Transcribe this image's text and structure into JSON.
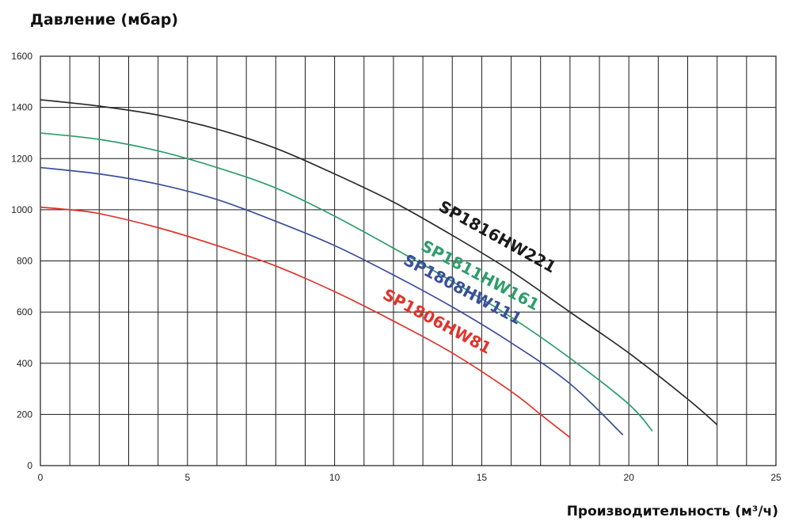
{
  "chart_data": {
    "type": "line",
    "ylabel": "Давление (мбар)",
    "xlabel": "Производительность (м³/ч)",
    "xlim": [
      0,
      25
    ],
    "ylim": [
      0,
      1600
    ],
    "x_ticks": [
      0,
      5,
      10,
      15,
      20,
      25
    ],
    "y_ticks": [
      0,
      200,
      400,
      600,
      800,
      1000,
      1200,
      1400,
      1600
    ],
    "x_gridlines_every": 1,
    "y_gridlines_every": 200,
    "grid": true,
    "series": [
      {
        "name": "SP1816HW221",
        "color": "#2b2b2b",
        "x": [
          0,
          2,
          4,
          6,
          8,
          10,
          12,
          14,
          16,
          18,
          20,
          22,
          23
        ],
        "y": [
          1430,
          1405,
          1370,
          1315,
          1240,
          1140,
          1030,
          900,
          760,
          600,
          440,
          260,
          160
        ]
      },
      {
        "name": "SP1811HW161",
        "color": "#2e9d6b",
        "x": [
          0,
          2,
          4,
          6,
          8,
          10,
          12,
          14,
          16,
          18,
          20,
          20.8
        ],
        "y": [
          1300,
          1275,
          1230,
          1165,
          1085,
          975,
          850,
          720,
          580,
          420,
          240,
          135
        ]
      },
      {
        "name": "SP1808HW111",
        "color": "#3b4f9a",
        "x": [
          0,
          2,
          4,
          6,
          8,
          10,
          12,
          14,
          16,
          18,
          19.8
        ],
        "y": [
          1165,
          1140,
          1100,
          1040,
          955,
          860,
          745,
          620,
          480,
          320,
          120
        ]
      },
      {
        "name": "SP1806HW81",
        "color": "#e0342c",
        "x": [
          0,
          1,
          2,
          4,
          6,
          8,
          10,
          12,
          14,
          16,
          17,
          18
        ],
        "y": [
          1010,
          1000,
          985,
          930,
          860,
          780,
          680,
          565,
          440,
          290,
          200,
          110
        ]
      }
    ],
    "annotations": [
      {
        "text": "SP1816HW221",
        "color": "#1a1a1a",
        "x": 13.5,
        "y": 1000,
        "angle": 29
      },
      {
        "text": "SP1811HW161",
        "color": "#2e9d6b",
        "x": 12.9,
        "y": 845,
        "angle": 28
      },
      {
        "text": "SP1808HW111",
        "color": "#3b4f9a",
        "x": 12.3,
        "y": 790,
        "angle": 28
      },
      {
        "text": "SP1806HW81",
        "color": "#e0342c",
        "x": 11.6,
        "y": 655,
        "angle": 28
      }
    ]
  }
}
